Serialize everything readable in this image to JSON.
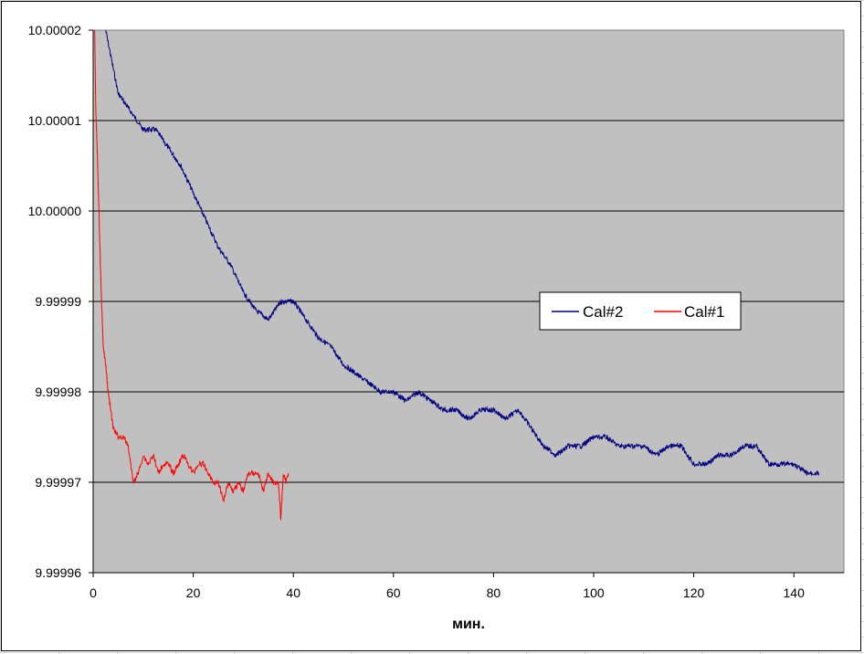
{
  "chart_data": {
    "type": "line",
    "title": "",
    "xlabel": "мин.",
    "ylabel": "",
    "xlim": [
      0,
      150
    ],
    "ylim": [
      9.99996,
      10.00002
    ],
    "x_ticks": [
      0,
      20,
      40,
      60,
      80,
      100,
      120,
      140
    ],
    "x_tick_labels": [
      "0",
      "20",
      "40",
      "60",
      "80",
      "100",
      "120",
      "140"
    ],
    "y_ticks": [
      10.00002,
      10.00001,
      10.0,
      9.99999,
      9.99998,
      9.99997,
      9.99996
    ],
    "y_tick_labels": [
      "10.00002",
      "10.00001",
      "10.00000",
      "9.99999",
      "9.99998",
      "9.99997",
      "9.99996"
    ],
    "grid": "horizontal",
    "plot_background": "#c0c0c0",
    "legend": {
      "placement": "right-center",
      "entries": [
        "Cal#2",
        "Cal#1"
      ]
    },
    "series": [
      {
        "name": "Cal#2",
        "color": "#000080",
        "x": [
          2.5,
          5,
          7.5,
          10,
          12.5,
          15,
          17.5,
          20,
          22.5,
          25,
          27.5,
          30,
          32.5,
          35,
          37.5,
          40,
          42.5,
          45,
          47.5,
          50,
          52.5,
          55,
          57.5,
          60,
          62.5,
          65,
          67.5,
          70,
          72.5,
          75,
          77.5,
          80,
          82.5,
          85,
          87.5,
          90,
          92.5,
          95,
          97.5,
          100,
          102.5,
          105,
          107.5,
          110,
          112.5,
          115,
          117.5,
          120,
          122.5,
          125,
          127.5,
          130,
          132.5,
          135,
          137.5,
          140,
          142.5,
          145
        ],
        "y": [
          10.00002,
          10.000013,
          10.000011,
          10.000009,
          10.000009,
          10.000007,
          10.000005,
          10.000002,
          9.999999,
          9.999996,
          9.999994,
          9.999991,
          9.999989,
          9.999988,
          9.99999,
          9.99999,
          9.999988,
          9.999986,
          9.999985,
          9.999983,
          9.999982,
          9.999981,
          9.99998,
          9.99998,
          9.999979,
          9.99998,
          9.999979,
          9.999978,
          9.999978,
          9.999977,
          9.999978,
          9.999978,
          9.999977,
          9.999978,
          9.999976,
          9.999974,
          9.999973,
          9.999974,
          9.999974,
          9.999975,
          9.999975,
          9.999974,
          9.999974,
          9.999974,
          9.999973,
          9.999974,
          9.999974,
          9.999972,
          9.999972,
          9.999973,
          9.999973,
          9.999974,
          9.999974,
          9.999972,
          9.999972,
          9.999972,
          9.999971,
          9.999971
        ]
      },
      {
        "name": "Cal#1",
        "color": "#ff0000",
        "x": [
          0.3,
          0.5,
          1.0,
          1.5,
          2.0,
          2.5,
          3.0,
          3.5,
          4.0,
          5.0,
          6.0,
          7.0,
          8.0,
          9.0,
          10.0,
          11.0,
          12.0,
          13.0,
          14.0,
          15.0,
          16.0,
          17.0,
          18.0,
          19.0,
          20.0,
          21.0,
          22.0,
          23.0,
          24.0,
          25.0,
          26.0,
          27.0,
          28.0,
          29.0,
          30.0,
          31.0,
          32.0,
          33.0,
          34.0,
          35.0,
          36.0,
          37.0,
          37.5,
          38.0,
          38.5,
          39.0
        ],
        "y": [
          10.00002,
          10.000012,
          10.000003,
          9.999993,
          9.999985,
          9.999983,
          9.99998,
          9.999978,
          9.999976,
          9.999975,
          9.999975,
          9.999974,
          9.99997,
          9.999971,
          9.999973,
          9.999972,
          9.999973,
          9.999971,
          9.999972,
          9.999972,
          9.999971,
          9.999972,
          9.999973,
          9.999972,
          9.999971,
          9.999972,
          9.999972,
          9.999971,
          9.99997,
          9.99997,
          9.999968,
          9.99997,
          9.999969,
          9.99997,
          9.999969,
          9.999971,
          9.999971,
          9.999971,
          9.999969,
          9.999971,
          9.99997,
          9.99997,
          9.999966,
          9.999971,
          9.99997,
          9.999971
        ]
      }
    ]
  }
}
